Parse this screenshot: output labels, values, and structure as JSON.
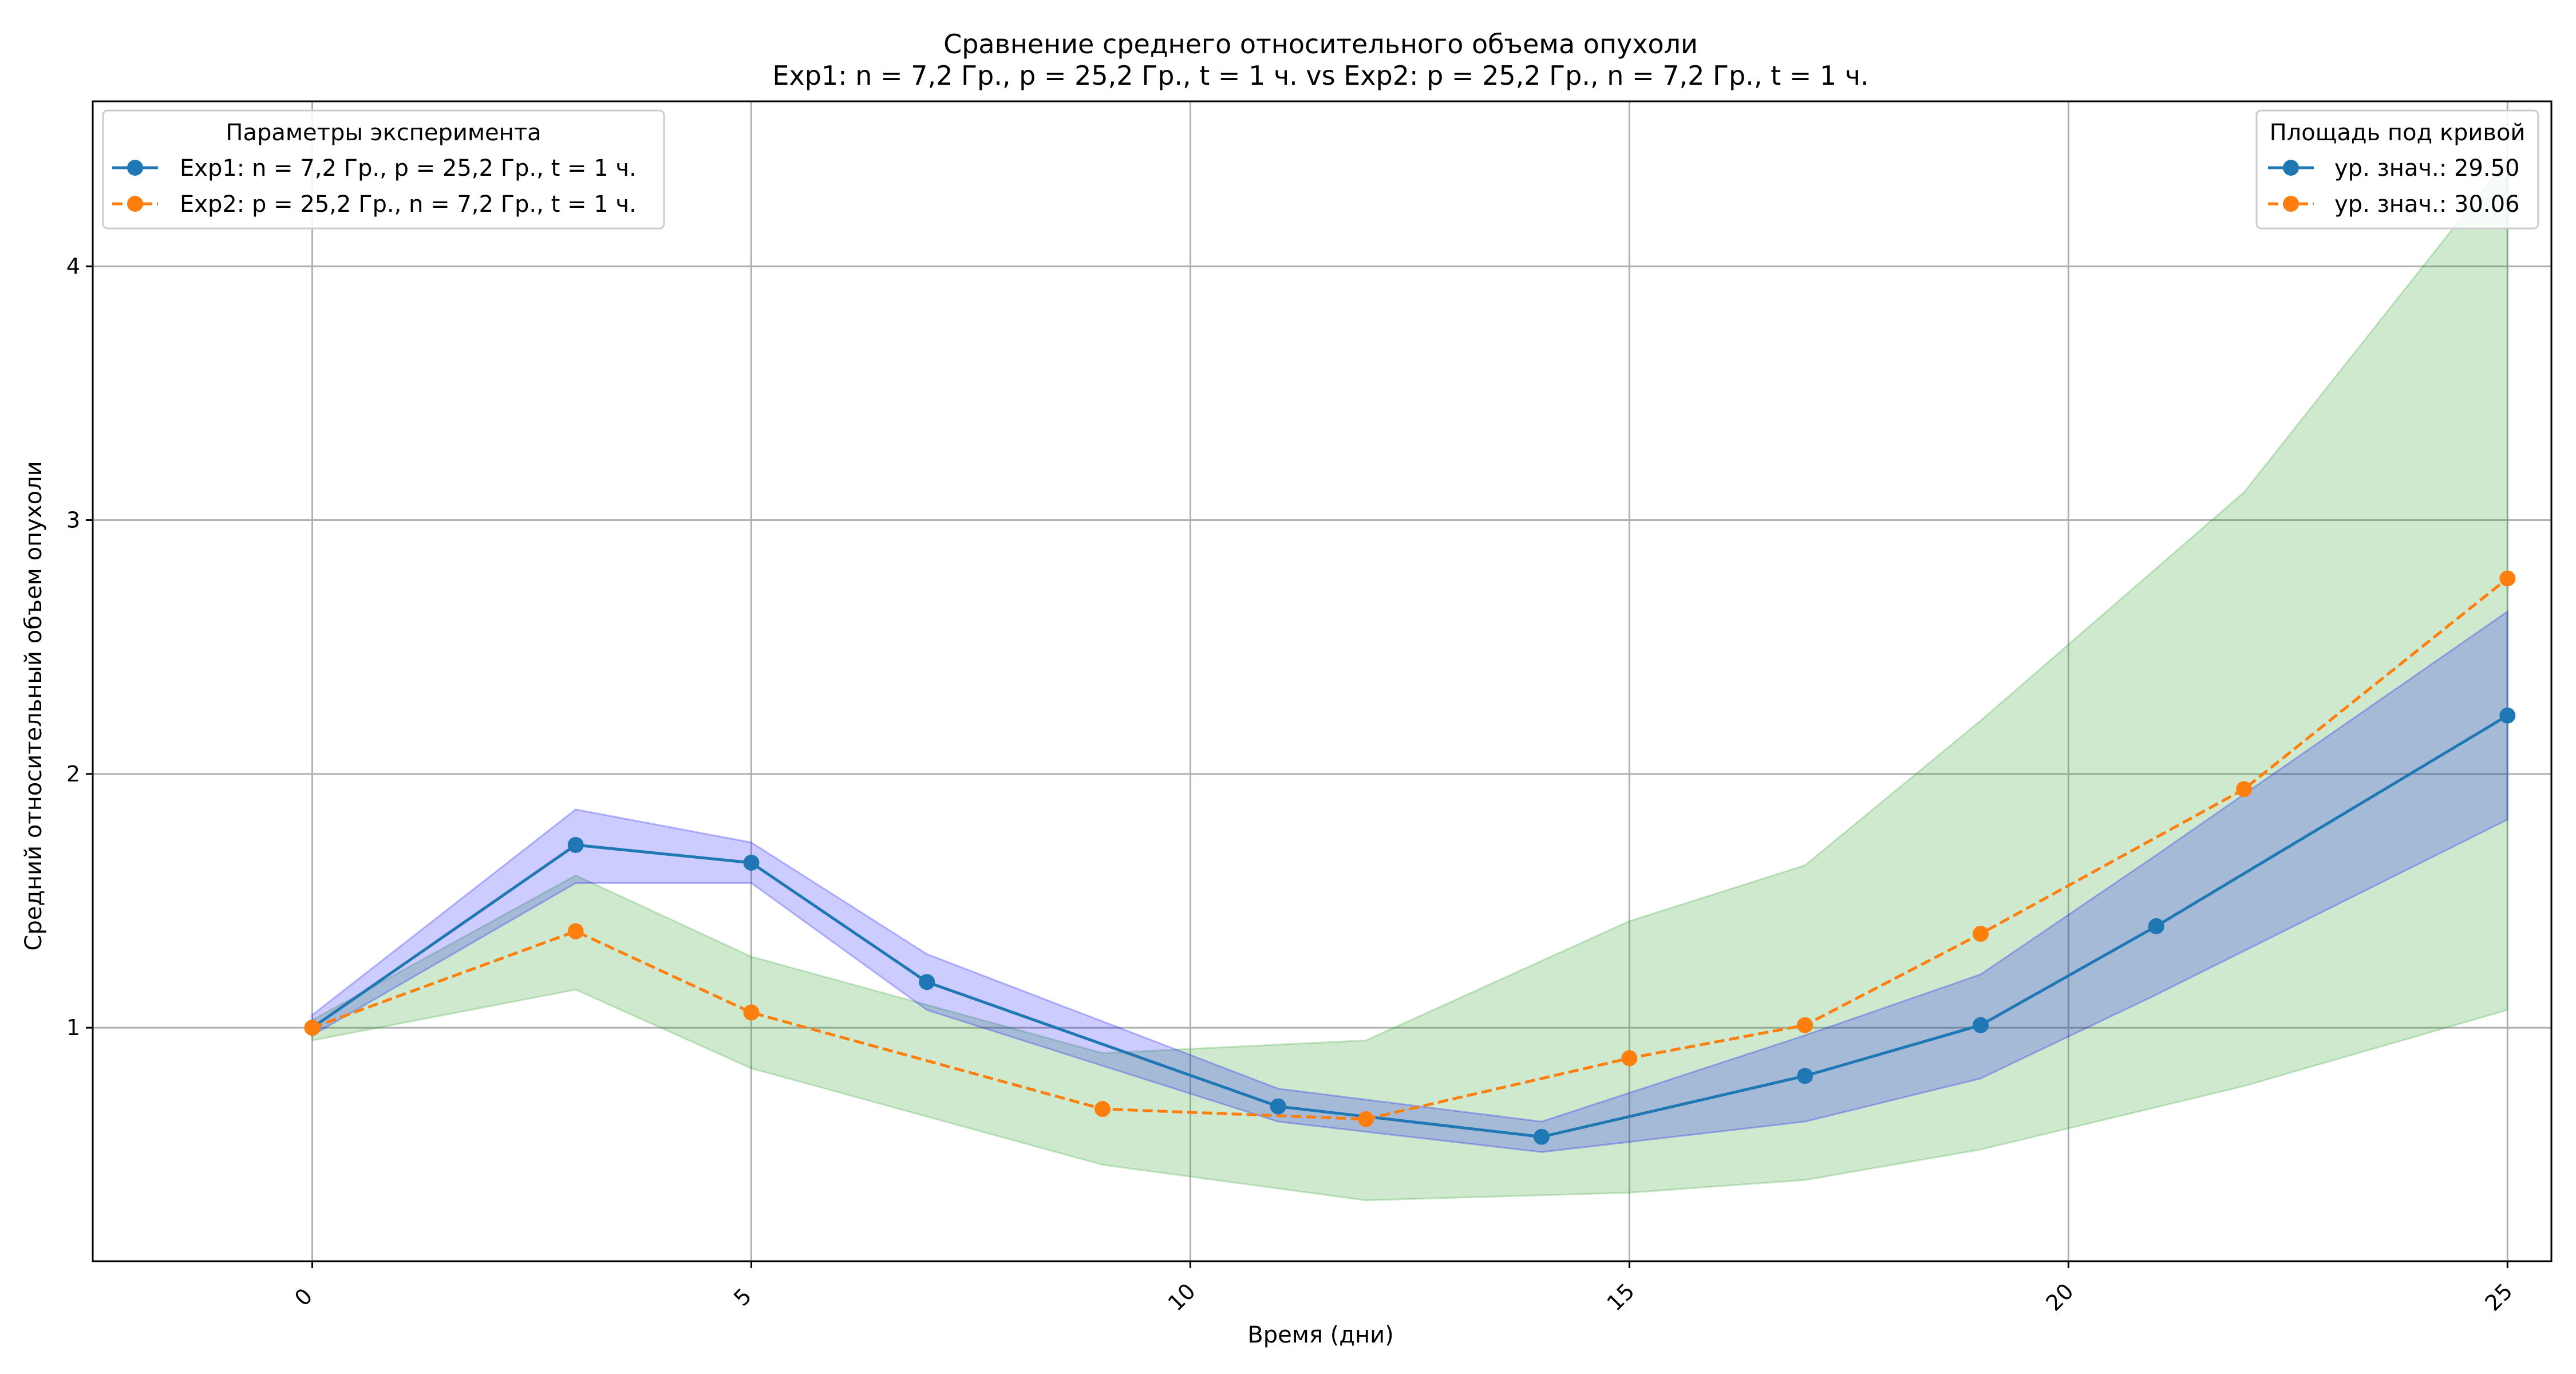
{
  "chart_data": {
    "type": "line",
    "title_line1": "Сравнение среднего относительного объема опухоли",
    "title_line2": "Exp1: n = 7,2 Гр., p = 25,2 Гр., t = 1 ч. vs Exp2: p = 25,2 Гр., n = 7,2 Гр., t = 1 ч.",
    "xlabel": "Время (дни)",
    "ylabel": "Средний относительный объем опухоли",
    "xlim": [
      -2.5,
      25.5
    ],
    "ylim": [
      0.08,
      4.65
    ],
    "xticks": [
      0,
      5,
      10,
      15,
      20,
      25
    ],
    "yticks": [
      1,
      2,
      3,
      4
    ],
    "grid": true,
    "series": [
      {
        "name": "Exp1: n = 7,2 Гр., p = 25,2 Гр., t = 1 ч.",
        "color": "#1f77b4",
        "linestyle": "solid",
        "x": [
          0,
          3,
          5,
          7,
          11,
          14,
          17,
          19,
          21,
          25
        ],
        "y": [
          1.0,
          1.72,
          1.65,
          1.18,
          0.69,
          0.57,
          0.81,
          1.01,
          1.4,
          2.23
        ],
        "band_lower": [
          0.97,
          1.57,
          1.57,
          1.07,
          0.63,
          0.51,
          0.63,
          0.8,
          1.13,
          1.82
        ],
        "band_upper": [
          1.05,
          1.86,
          1.73,
          1.29,
          0.76,
          0.63,
          0.97,
          1.21,
          1.68,
          2.64
        ],
        "band_color": "#0000ff",
        "band_opacity": 0.2
      },
      {
        "name": "Exp2: p = 25,2 Гр., n = 7,2 Гр., t = 1 ч.",
        "color": "#ff7f0e",
        "linestyle": "dashed",
        "x": [
          0,
          3,
          5,
          9,
          12,
          15,
          17,
          19,
          22,
          25
        ],
        "y": [
          1.0,
          1.38,
          1.06,
          0.68,
          0.64,
          0.88,
          1.01,
          1.37,
          1.94,
          2.77
        ],
        "band_lower": [
          0.95,
          1.15,
          0.84,
          0.46,
          0.32,
          0.35,
          0.4,
          0.52,
          0.77,
          1.07
        ],
        "band_upper": [
          1.03,
          1.6,
          1.28,
          0.9,
          0.95,
          1.42,
          1.64,
          2.21,
          3.11,
          4.42
        ],
        "band_color": "#2ca02c",
        "band_opacity": 0.23
      }
    ],
    "legend_left": {
      "title": "Параметры эксперимента",
      "placement": "top-left",
      "entries": [
        "Exp1: n = 7,2 Гр., p = 25,2 Гр., t = 1 ч.",
        "Exp2: p = 25,2 Гр., n = 7,2 Гр., t = 1 ч."
      ]
    },
    "legend_right": {
      "title": "Площадь под кривой",
      "placement": "top-right",
      "entries": [
        "ур. знач.: 29.50",
        "ур. знач.: 30.06"
      ]
    }
  }
}
